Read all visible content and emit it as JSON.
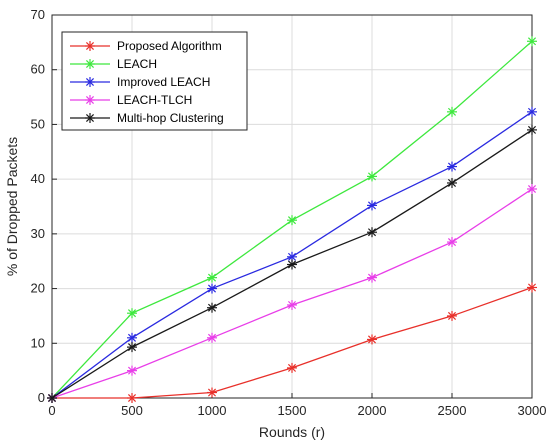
{
  "chart_data": {
    "type": "line",
    "title": "",
    "xlabel": "Rounds (r)",
    "ylabel": "% of Dropped Packets",
    "xlim": [
      0,
      3000
    ],
    "ylim": [
      0,
      70
    ],
    "xticks": [
      0,
      500,
      1000,
      1500,
      2000,
      2500,
      3000
    ],
    "yticks": [
      0,
      10,
      20,
      30,
      40,
      50,
      60,
      70
    ],
    "grid": true,
    "legend_position": "top-left",
    "x": [
      0,
      500,
      1000,
      1500,
      2000,
      2500,
      3000
    ],
    "series": [
      {
        "name": "Proposed Algorithm",
        "color": "#e8302a",
        "values": [
          0,
          0,
          1,
          5.5,
          10.7,
          15,
          20.2
        ]
      },
      {
        "name": "LEACH",
        "color": "#3ee83e",
        "values": [
          0,
          15.5,
          22,
          32.5,
          40.5,
          52.3,
          65.2
        ]
      },
      {
        "name": "Improved LEACH",
        "color": "#2a2ae0",
        "values": [
          0,
          11,
          20,
          25.8,
          35.2,
          42.3,
          52.3
        ]
      },
      {
        "name": "LEACH-TLCH",
        "color": "#e83ee8",
        "values": [
          0,
          5,
          11,
          17,
          22,
          28.5,
          38.2
        ]
      },
      {
        "name": "Multi-hop Clustering",
        "color": "#1a1a1a",
        "values": [
          0,
          9.3,
          16.5,
          24.4,
          30.3,
          39.3,
          49
        ]
      }
    ]
  }
}
